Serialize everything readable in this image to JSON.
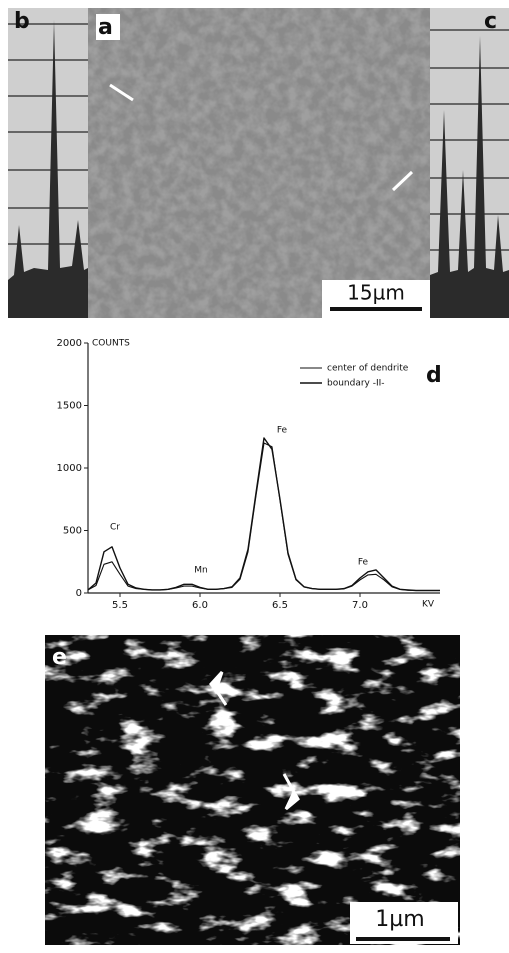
{
  "panels": {
    "a": "a",
    "b": "b",
    "c": "c",
    "e": "e",
    "scale_a": "15µm",
    "scale_e": "1µm"
  },
  "chart_data": {
    "type": "line",
    "panel_label": "d",
    "y_label": "COUNTS",
    "x_label": "KV",
    "x": [
      5.3,
      5.35,
      5.4,
      5.45,
      5.5,
      5.55,
      5.6,
      5.65,
      5.7,
      5.75,
      5.8,
      5.85,
      5.9,
      5.95,
      6.0,
      6.05,
      6.1,
      6.15,
      6.2,
      6.25,
      6.3,
      6.35,
      6.4,
      6.45,
      6.5,
      6.55,
      6.6,
      6.65,
      6.7,
      6.75,
      6.8,
      6.85,
      6.9,
      6.95,
      7.0,
      7.05,
      7.1,
      7.15,
      7.2,
      7.25,
      7.3,
      7.35,
      7.4,
      7.45,
      7.5
    ],
    "series": [
      {
        "name": "center of dendrite",
        "color": "#111111",
        "values": [
          25,
          60,
          230,
          250,
          150,
          55,
          35,
          30,
          25,
          25,
          28,
          40,
          55,
          55,
          40,
          30,
          30,
          35,
          45,
          110,
          330,
          780,
          1200,
          1170,
          740,
          310,
          105,
          48,
          35,
          30,
          30,
          30,
          33,
          55,
          105,
          145,
          150,
          105,
          50,
          28,
          22,
          20,
          20,
          20,
          20
        ]
      },
      {
        "name": "boundary -II-",
        "color": "#111111",
        "values": [
          25,
          80,
          330,
          370,
          200,
          70,
          40,
          30,
          25,
          25,
          30,
          45,
          70,
          70,
          45,
          30,
          30,
          35,
          50,
          120,
          350,
          800,
          1240,
          1150,
          750,
          320,
          110,
          50,
          35,
          30,
          30,
          30,
          35,
          60,
          120,
          170,
          185,
          120,
          55,
          30,
          25,
          20,
          20,
          20,
          20
        ]
      }
    ],
    "xlim": [
      5.3,
      7.5
    ],
    "ylim": [
      0,
      2000
    ],
    "xticks": [
      5.5,
      {
        "value": 6,
        "label": "6.0"
      },
      6.5,
      {
        "value": 7,
        "label": "7.0"
      }
    ],
    "yticks": [
      0,
      500,
      1000,
      1500,
      2000
    ],
    "peak_labels": [
      "Cr",
      "Mn",
      "Fe",
      "Fe"
    ]
  }
}
